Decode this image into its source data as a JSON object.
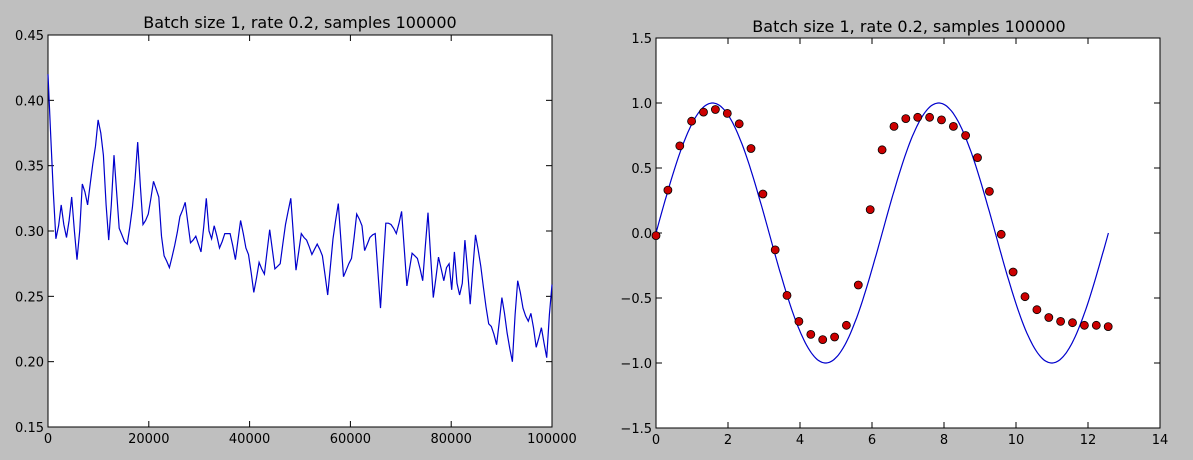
{
  "chart_data": [
    {
      "type": "line",
      "title": "Batch size 1, rate 0.2, samples 100000",
      "xlabel": "",
      "ylabel": "",
      "xlim": [
        0,
        100000
      ],
      "ylim": [
        0.15,
        0.45
      ],
      "xticks": [
        "0",
        "20000",
        "40000",
        "60000",
        "80000",
        "100000"
      ],
      "yticks": [
        "0.15",
        "0.20",
        "0.25",
        "0.30",
        "0.35",
        "0.40",
        "0.45"
      ],
      "grid": false,
      "series": [
        {
          "color": "#0000cc",
          "x_start": 0,
          "x_step": 1000,
          "values": [
            0.42,
            0.375,
            0.33,
            0.294,
            0.304,
            0.32,
            0.305,
            0.295,
            0.308,
            0.326,
            0.3,
            0.278,
            0.3,
            0.336,
            0.33,
            0.32,
            0.336,
            0.352,
            0.365,
            0.385,
            0.375,
            0.358,
            0.32,
            0.293,
            0.32,
            0.358,
            0.33,
            0.302,
            0.297,
            0.292,
            0.29,
            0.303,
            0.318,
            0.34,
            0.368,
            0.334,
            0.305,
            0.308,
            0.313,
            0.325,
            0.338,
            0.332,
            0.326,
            0.296,
            0.281,
            0.277,
            0.272,
            0.28,
            0.289,
            0.299,
            0.311,
            0.316,
            0.322,
            0.306,
            0.291,
            0.293,
            0.296,
            0.29,
            0.284,
            0.303,
            0.325,
            0.3,
            0.294,
            0.304,
            0.296,
            0.287,
            0.292,
            0.298,
            0.298,
            0.298,
            0.289,
            0.278,
            0.293,
            0.308,
            0.298,
            0.287,
            0.282,
            0.268,
            0.253,
            0.264,
            0.276,
            0.271,
            0.267,
            0.284,
            0.301,
            0.286,
            0.271,
            0.273,
            0.275,
            0.29,
            0.305,
            0.315,
            0.325,
            0.297,
            0.27,
            0.284,
            0.298,
            0.295,
            0.293,
            0.288,
            0.282,
            0.286,
            0.29,
            0.286,
            0.281,
            0.266,
            0.251,
            0.272,
            0.294,
            0.308,
            0.321,
            0.293,
            0.265,
            0.27,
            0.275,
            0.279,
            0.295,
            0.313,
            0.309,
            0.304,
            0.285,
            0.29,
            0.295,
            0.297,
            0.298,
            0.27,
            0.241,
            0.274,
            0.306,
            0.306,
            0.305,
            0.302,
            0.298,
            0.306,
            0.315,
            0.287,
            0.258,
            0.271,
            0.283,
            0.281,
            0.279,
            0.271,
            0.262,
            0.288,
            0.314,
            0.281,
            0.249,
            0.264,
            0.28,
            0.271,
            0.262,
            0.272,
            0.275,
            0.255,
            0.284,
            0.26,
            0.251,
            0.26,
            0.293,
            0.27,
            0.244,
            0.271,
            0.297,
            0.286,
            0.273,
            0.257,
            0.242,
            0.229,
            0.227,
            0.221,
            0.213,
            0.23,
            0.249,
            0.237,
            0.222,
            0.21,
            0.2,
            0.236,
            0.262,
            0.253,
            0.241,
            0.235,
            0.231,
            0.237,
            0.226,
            0.211,
            0.218,
            0.226,
            0.214,
            0.203,
            0.236,
            0.259
          ]
        }
      ]
    },
    {
      "type": "line",
      "title": "Batch size 1, rate 0.2, samples 100000",
      "xlabel": "",
      "ylabel": "",
      "xlim": [
        0,
        14
      ],
      "ylim": [
        -1.5,
        1.5
      ],
      "xticks": [
        "0",
        "2",
        "4",
        "6",
        "8",
        "10",
        "12",
        "14"
      ],
      "yticks": [
        "−1.5",
        "−1.0",
        "−0.5",
        "0.0",
        "0.5",
        "1.0",
        "1.5"
      ],
      "grid": false,
      "series": [
        {
          "kind": "line",
          "color": "#0000cc",
          "function": "sin",
          "x_range": [
            0,
            12.566
          ]
        },
        {
          "kind": "scatter",
          "color": "#cc0000",
          "points": [
            [
              0.0,
              -0.02
            ],
            [
              0.33,
              0.33
            ],
            [
              0.66,
              0.67
            ],
            [
              0.99,
              0.86
            ],
            [
              1.32,
              0.93
            ],
            [
              1.65,
              0.95
            ],
            [
              1.98,
              0.92
            ],
            [
              2.31,
              0.84
            ],
            [
              2.64,
              0.65
            ],
            [
              2.97,
              0.3
            ],
            [
              3.31,
              -0.13
            ],
            [
              3.64,
              -0.48
            ],
            [
              3.97,
              -0.68
            ],
            [
              4.3,
              -0.78
            ],
            [
              4.63,
              -0.82
            ],
            [
              4.96,
              -0.8
            ],
            [
              5.29,
              -0.71
            ],
            [
              5.62,
              -0.4
            ],
            [
              5.95,
              0.18
            ],
            [
              6.28,
              0.64
            ],
            [
              6.61,
              0.82
            ],
            [
              6.94,
              0.88
            ],
            [
              7.27,
              0.89
            ],
            [
              7.6,
              0.89
            ],
            [
              7.93,
              0.87
            ],
            [
              8.26,
              0.82
            ],
            [
              8.6,
              0.75
            ],
            [
              8.93,
              0.58
            ],
            [
              9.26,
              0.32
            ],
            [
              9.59,
              -0.01
            ],
            [
              9.92,
              -0.3
            ],
            [
              10.25,
              -0.49
            ],
            [
              10.58,
              -0.59
            ],
            [
              10.91,
              -0.65
            ],
            [
              11.24,
              -0.68
            ],
            [
              11.57,
              -0.69
            ],
            [
              11.9,
              -0.71
            ],
            [
              12.23,
              -0.71
            ],
            [
              12.56,
              -0.72
            ]
          ]
        }
      ]
    }
  ]
}
